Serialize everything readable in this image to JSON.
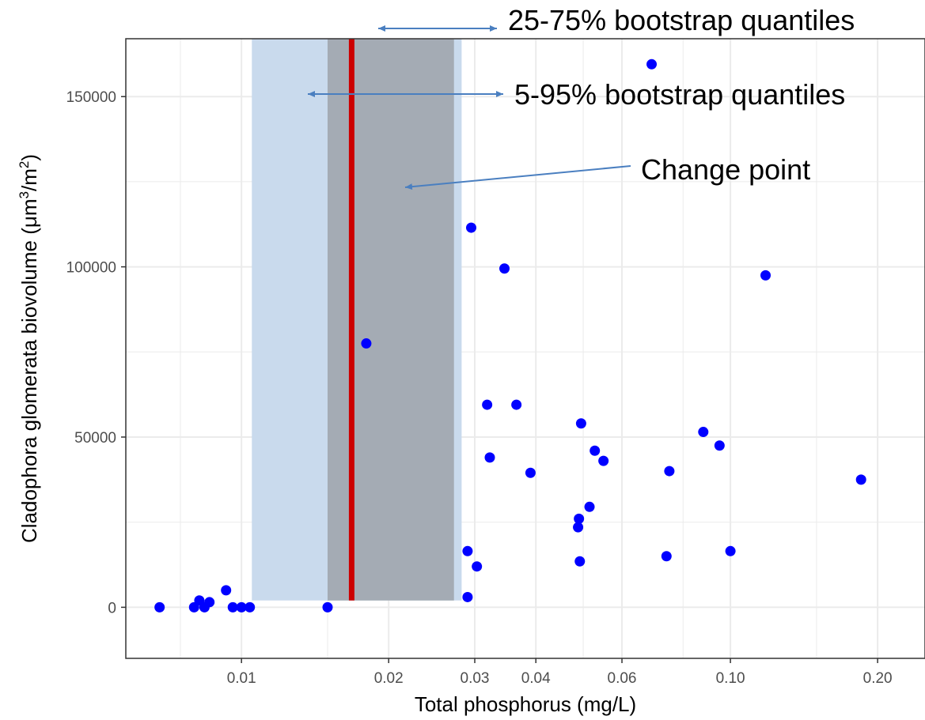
{
  "chart_data": {
    "type": "scatter",
    "title": "",
    "xlabel": "Total phosphorus (mg/L)",
    "ylabel_main": "Cladophora glomerata biovolume (μm",
    "ylabel_sup1": "3",
    "ylabel_mid": "/m",
    "ylabel_sup2": "2",
    "ylabel_end": ")",
    "x_scale": "log",
    "xlim": [
      0.0058,
      0.25
    ],
    "ylim": [
      -15000,
      167000
    ],
    "x_ticks": [
      {
        "value": 0.01,
        "label": "0.01"
      },
      {
        "value": 0.02,
        "label": "0.02"
      },
      {
        "value": 0.03,
        "label": "0.03"
      },
      {
        "value": 0.04,
        "label": "0.04"
      },
      {
        "value": 0.06,
        "label": "0.06"
      },
      {
        "value": 0.1,
        "label": "0.10"
      },
      {
        "value": 0.2,
        "label": "0.20"
      }
    ],
    "x_minor_ticks": [
      0.0075,
      0.015,
      0.05,
      0.08,
      0.15
    ],
    "y_ticks": [
      {
        "value": 0,
        "label": "0"
      },
      {
        "value": 50000,
        "label": "50000"
      },
      {
        "value": 100000,
        "label": "100000"
      },
      {
        "value": 150000,
        "label": "150000"
      }
    ],
    "y_minor_ticks": [
      25000,
      75000,
      125000
    ],
    "grid": true,
    "change_point": 0.0168,
    "quantiles_5_95": [
      0.0105,
      0.0282
    ],
    "quantiles_25_75": [
      0.015,
      0.0272
    ],
    "band_y_range": [
      2000,
      167000
    ],
    "points": [
      {
        "x": 0.0068,
        "y": 0
      },
      {
        "x": 0.008,
        "y": 0
      },
      {
        "x": 0.0082,
        "y": 2000
      },
      {
        "x": 0.0084,
        "y": 0
      },
      {
        "x": 0.0086,
        "y": 1500
      },
      {
        "x": 0.0093,
        "y": 5000
      },
      {
        "x": 0.0096,
        "y": 0
      },
      {
        "x": 0.01,
        "y": 0
      },
      {
        "x": 0.0104,
        "y": 0
      },
      {
        "x": 0.015,
        "y": 0
      },
      {
        "x": 0.018,
        "y": 77500
      },
      {
        "x": 0.029,
        "y": 3000
      },
      {
        "x": 0.029,
        "y": 16500
      },
      {
        "x": 0.0295,
        "y": 111500
      },
      {
        "x": 0.0303,
        "y": 12000
      },
      {
        "x": 0.0318,
        "y": 59500
      },
      {
        "x": 0.0322,
        "y": 44000
      },
      {
        "x": 0.0345,
        "y": 99500
      },
      {
        "x": 0.0365,
        "y": 59500
      },
      {
        "x": 0.039,
        "y": 39500
      },
      {
        "x": 0.0488,
        "y": 23500
      },
      {
        "x": 0.049,
        "y": 26000
      },
      {
        "x": 0.0492,
        "y": 13500
      },
      {
        "x": 0.0495,
        "y": 54000
      },
      {
        "x": 0.0515,
        "y": 29500
      },
      {
        "x": 0.0528,
        "y": 46000
      },
      {
        "x": 0.055,
        "y": 43000
      },
      {
        "x": 0.069,
        "y": 159500
      },
      {
        "x": 0.074,
        "y": 15000
      },
      {
        "x": 0.075,
        "y": 40000
      },
      {
        "x": 0.088,
        "y": 51500
      },
      {
        "x": 0.095,
        "y": 47500
      },
      {
        "x": 0.1,
        "y": 16500
      },
      {
        "x": 0.118,
        "y": 97500
      },
      {
        "x": 0.185,
        "y": 37500
      }
    ],
    "annotations": {
      "q25_75": "25-75% bootstrap quantiles",
      "q5_95": "5-95% bootstrap quantiles",
      "change_point": "Change point"
    },
    "colors": {
      "points": "#0000ff",
      "change_point_line": "#cc0000",
      "band_5_95": "#c9daed",
      "band_25_75": "#a4abb4",
      "arrow": "#4a7fc0",
      "grid": "#ebebeb",
      "panel_border": "#333333"
    }
  }
}
